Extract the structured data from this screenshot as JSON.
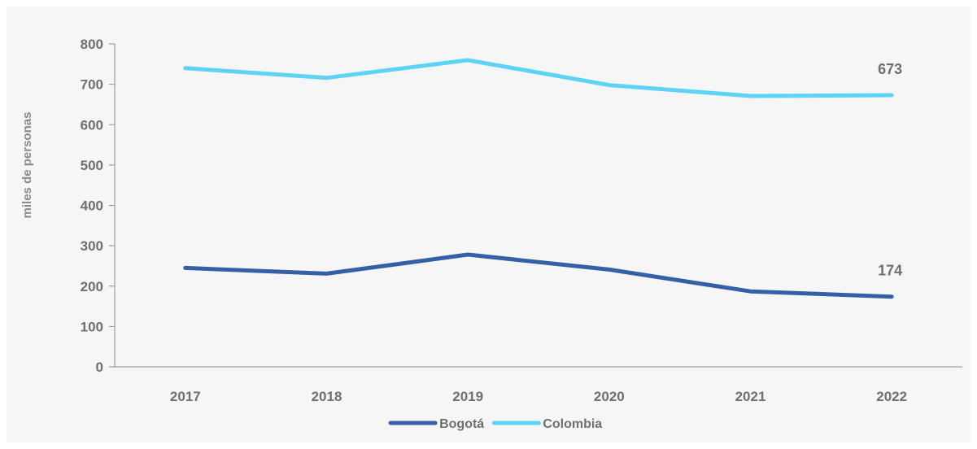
{
  "chart_data": {
    "type": "line",
    "title": "",
    "xlabel": "",
    "ylabel": "miles de personas",
    "x": [
      "2017",
      "2018",
      "2019",
      "2020",
      "2021",
      "2022"
    ],
    "ylim": [
      0,
      800
    ],
    "yticks": [
      0,
      100,
      200,
      300,
      400,
      500,
      600,
      700,
      800
    ],
    "grid": false,
    "legend_position": "bottom",
    "series": [
      {
        "name": "Bogotá",
        "color": "#3560a5",
        "values": [
          245,
          231,
          278,
          241,
          187,
          174
        ],
        "end_label": "174"
      },
      {
        "name": "Colombia",
        "color": "#5ed3f6",
        "values": [
          740,
          716,
          760,
          698,
          671,
          673
        ],
        "end_label": "673"
      }
    ]
  }
}
